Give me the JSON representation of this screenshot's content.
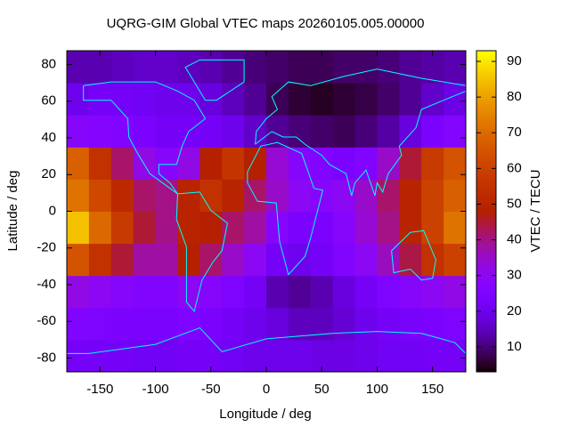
{
  "chart_data": {
    "type": "heatmap",
    "title": "UQRG-GIM Global VTEC maps 20260105.005.00000",
    "xlabel": "Longitude / deg",
    "ylabel": "Latitude / deg",
    "colorbar_label": "VTEC / TECU",
    "colormap": "gnuplot",
    "xlim": [
      -180,
      180
    ],
    "ylim": [
      -87.5,
      87.5
    ],
    "xticks": [
      -150,
      -100,
      -50,
      0,
      50,
      100,
      150
    ],
    "yticks": [
      -80,
      -60,
      -40,
      -20,
      0,
      20,
      40,
      60,
      80
    ],
    "clim": [
      3,
      93
    ],
    "cticks": [
      10,
      20,
      30,
      40,
      50,
      60,
      70,
      80,
      90
    ],
    "x_bins": [
      -180,
      -160,
      -140,
      -120,
      -100,
      -80,
      -60,
      -40,
      -20,
      0,
      20,
      40,
      60,
      80,
      100,
      120,
      140,
      160,
      180
    ],
    "y_bins": [
      -87.5,
      -70,
      -52.5,
      -35,
      -17.5,
      0,
      17.5,
      35,
      52.5,
      70,
      87.5
    ],
    "z": [
      [
        22,
        22,
        22,
        21,
        21,
        22,
        22,
        21,
        20,
        20,
        20,
        19,
        19,
        20,
        21,
        21,
        22,
        22
      ],
      [
        26,
        25,
        24,
        24,
        24,
        25,
        24,
        22,
        20,
        18,
        15,
        15,
        17,
        20,
        22,
        23,
        24,
        25
      ],
      [
        32,
        30,
        28,
        26,
        26,
        30,
        28,
        25,
        22,
        14,
        12,
        14,
        18,
        22,
        25,
        28,
        30,
        32
      ],
      [
        65,
        55,
        45,
        38,
        38,
        48,
        42,
        35,
        30,
        22,
        20,
        22,
        26,
        30,
        36,
        44,
        55,
        60
      ],
      [
        85,
        70,
        58,
        45,
        40,
        50,
        48,
        42,
        38,
        28,
        24,
        24,
        28,
        34,
        40,
        50,
        60,
        72
      ],
      [
        72,
        62,
        52,
        42,
        40,
        50,
        55,
        50,
        42,
        35,
        30,
        28,
        30,
        35,
        42,
        50,
        60,
        68
      ],
      [
        68,
        55,
        42,
        32,
        28,
        32,
        48,
        56,
        48,
        34,
        28,
        26,
        24,
        26,
        35,
        45,
        58,
        65
      ],
      [
        28,
        27,
        26,
        24,
        22,
        22,
        22,
        20,
        16,
        12,
        10,
        9,
        8,
        10,
        13,
        18,
        24,
        27
      ],
      [
        20,
        22,
        22,
        21,
        20,
        20,
        18,
        15,
        12,
        8,
        6,
        5,
        6,
        7,
        9,
        12,
        16,
        19
      ],
      [
        14,
        14,
        15,
        16,
        16,
        15,
        14,
        12,
        10,
        9,
        8,
        8,
        9,
        9,
        10,
        12,
        13,
        14
      ]
    ]
  }
}
